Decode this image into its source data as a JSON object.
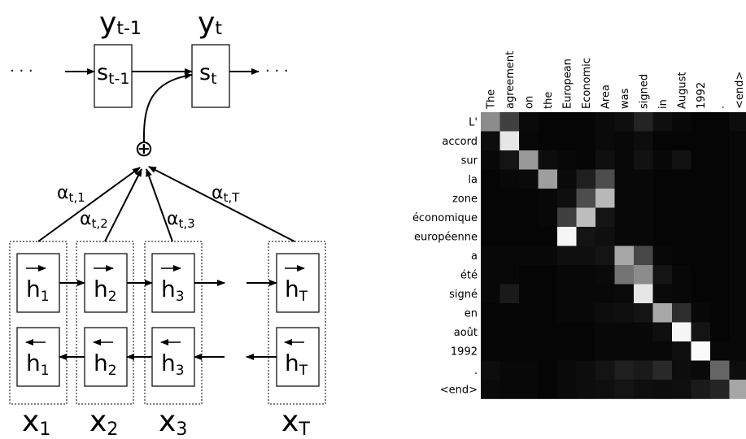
{
  "diagram": {
    "outputs": [
      {
        "base": "y",
        "sub": "t-1"
      },
      {
        "base": "y",
        "sub": "t"
      }
    ],
    "states": [
      {
        "base": "s",
        "sub": "t-1"
      },
      {
        "base": "s",
        "sub": "t"
      }
    ],
    "ellipsis": "· · ·",
    "plus_symbol": "⊕",
    "weights": [
      {
        "base": "α",
        "sub": "t,1"
      },
      {
        "base": "α",
        "sub": "t,2"
      },
      {
        "base": "α",
        "sub": "t,3"
      },
      {
        "base": "α",
        "sub": "t,T"
      }
    ],
    "hidden": [
      {
        "base": "h",
        "sub": "1"
      },
      {
        "base": "h",
        "sub": "2"
      },
      {
        "base": "h",
        "sub": "3"
      },
      {
        "base": "h",
        "sub": "T"
      }
    ],
    "inputs": [
      {
        "base": "x",
        "sub": "1"
      },
      {
        "base": "x",
        "sub": "2"
      },
      {
        "base": "x",
        "sub": "3"
      },
      {
        "base": "x",
        "sub": "T"
      }
    ]
  },
  "chart_data": {
    "type": "heatmap",
    "x_tokens": [
      "The",
      "agreement",
      "on",
      "the",
      "European",
      "Economic",
      "Area",
      "was",
      "signed",
      "in",
      "August",
      "1992",
      ".",
      "<end>"
    ],
    "y_tokens": [
      "L'",
      "accord",
      "sur",
      "la",
      "zone",
      "économique",
      "européenne",
      "a",
      "été",
      "signé",
      "en",
      "août",
      "1992",
      ".",
      "<end>"
    ],
    "colormap": "grayscale (black = 0, white = 1)",
    "values": [
      [
        0.55,
        0.25,
        0.04,
        0.02,
        0.02,
        0.02,
        0.04,
        0.06,
        0.14,
        0.06,
        0.03,
        0.02,
        0.02,
        0.05
      ],
      [
        0.05,
        0.9,
        0.03,
        0.02,
        0.02,
        0.02,
        0.04,
        0.03,
        0.05,
        0.02,
        0.02,
        0.02,
        0.02,
        0.03
      ],
      [
        0.03,
        0.08,
        0.6,
        0.05,
        0.03,
        0.02,
        0.06,
        0.03,
        0.07,
        0.03,
        0.07,
        0.02,
        0.02,
        0.03
      ],
      [
        0.02,
        0.03,
        0.04,
        0.62,
        0.04,
        0.12,
        0.3,
        0.03,
        0.03,
        0.02,
        0.02,
        0.02,
        0.02,
        0.03
      ],
      [
        0.02,
        0.02,
        0.02,
        0.03,
        0.06,
        0.3,
        0.72,
        0.03,
        0.03,
        0.02,
        0.02,
        0.02,
        0.02,
        0.03
      ],
      [
        0.02,
        0.02,
        0.02,
        0.03,
        0.25,
        0.74,
        0.08,
        0.03,
        0.03,
        0.02,
        0.02,
        0.02,
        0.02,
        0.03
      ],
      [
        0.02,
        0.02,
        0.02,
        0.02,
        0.96,
        0.08,
        0.06,
        0.03,
        0.03,
        0.02,
        0.02,
        0.02,
        0.02,
        0.03
      ],
      [
        0.03,
        0.03,
        0.03,
        0.03,
        0.06,
        0.06,
        0.08,
        0.65,
        0.28,
        0.03,
        0.02,
        0.02,
        0.02,
        0.03
      ],
      [
        0.03,
        0.03,
        0.02,
        0.02,
        0.03,
        0.03,
        0.04,
        0.45,
        0.55,
        0.08,
        0.03,
        0.02,
        0.02,
        0.03
      ],
      [
        0.03,
        0.1,
        0.02,
        0.02,
        0.03,
        0.03,
        0.03,
        0.04,
        0.9,
        0.04,
        0.03,
        0.02,
        0.02,
        0.03
      ],
      [
        0.02,
        0.02,
        0.02,
        0.02,
        0.03,
        0.03,
        0.05,
        0.06,
        0.08,
        0.66,
        0.18,
        0.03,
        0.02,
        0.03
      ],
      [
        0.02,
        0.02,
        0.02,
        0.02,
        0.02,
        0.02,
        0.03,
        0.03,
        0.03,
        0.06,
        0.96,
        0.08,
        0.02,
        0.03
      ],
      [
        0.02,
        0.02,
        0.02,
        0.02,
        0.02,
        0.02,
        0.03,
        0.03,
        0.03,
        0.03,
        0.06,
        0.98,
        0.03,
        0.03
      ],
      [
        0.05,
        0.03,
        0.03,
        0.02,
        0.04,
        0.05,
        0.08,
        0.12,
        0.1,
        0.16,
        0.05,
        0.04,
        0.4,
        0.05
      ],
      [
        0.04,
        0.03,
        0.03,
        0.02,
        0.04,
        0.05,
        0.06,
        0.08,
        0.06,
        0.05,
        0.06,
        0.1,
        0.14,
        0.65
      ]
    ]
  }
}
